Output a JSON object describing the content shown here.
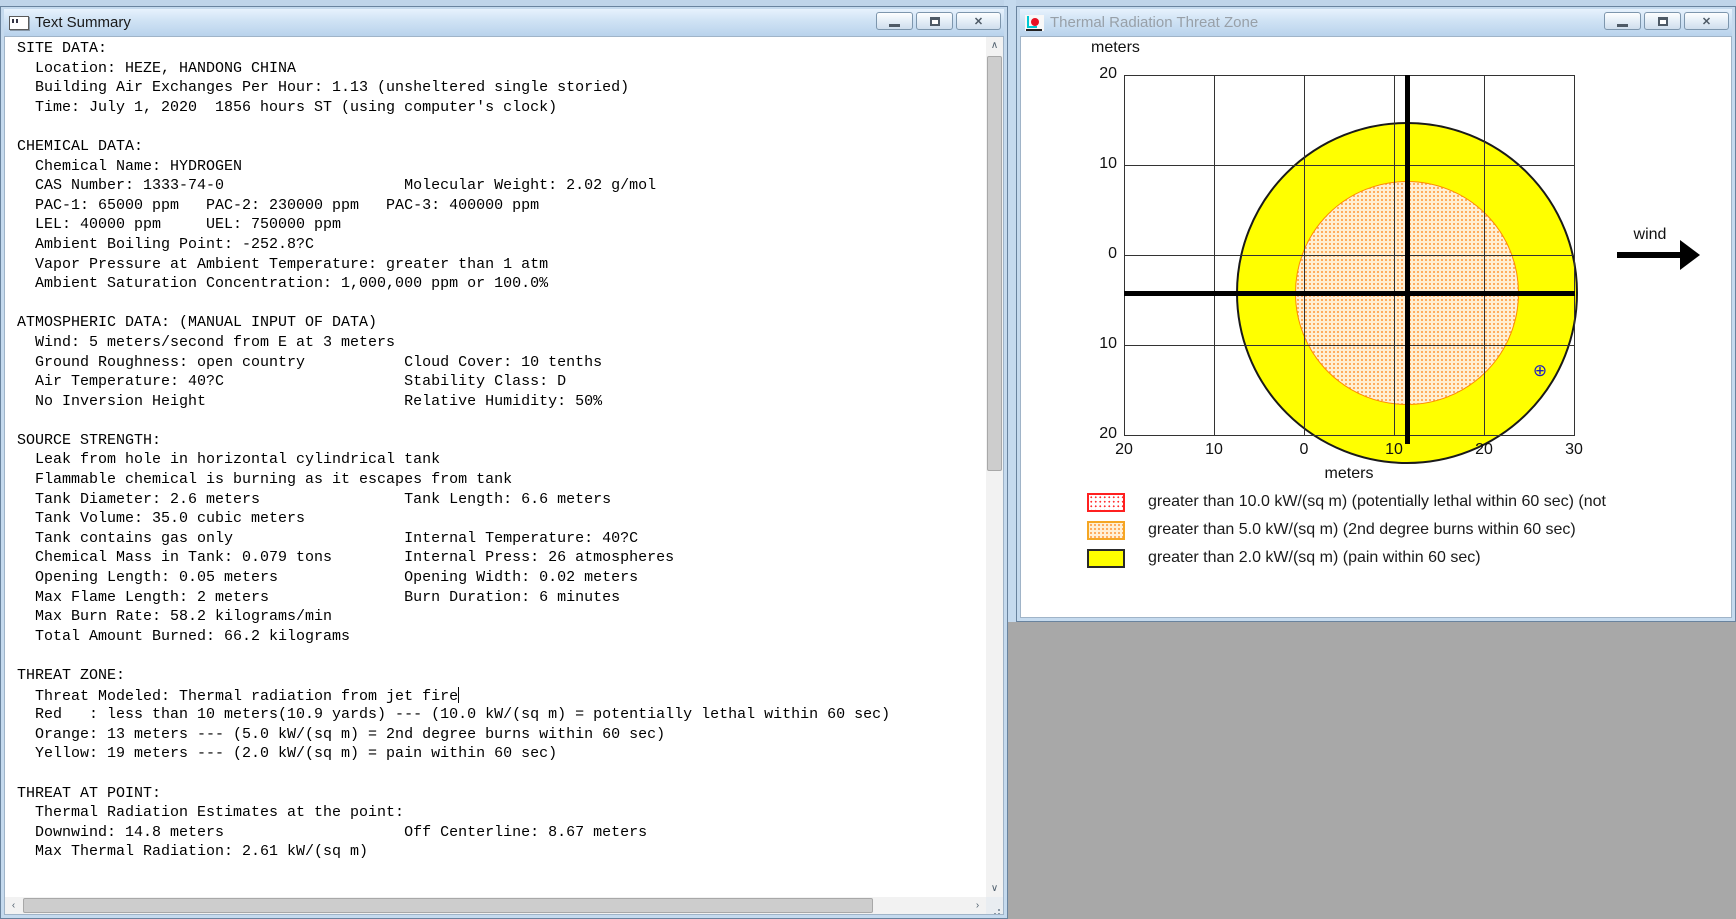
{
  "left_window": {
    "title": "Text Summary",
    "caret_after_line": 33,
    "summary_lines": [
      "SITE DATA:",
      "  Location: HEZE, HANDONG CHINA",
      "  Building Air Exchanges Per Hour: 1.13 (unsheltered single storied)",
      "  Time: July 1, 2020  1856 hours ST (using computer's clock)",
      "",
      "CHEMICAL DATA:",
      "  Chemical Name: HYDROGEN",
      "  CAS Number: 1333-74-0                    Molecular Weight: 2.02 g/mol",
      "  PAC-1: 65000 ppm   PAC-2: 230000 ppm   PAC-3: 400000 ppm",
      "  LEL: 40000 ppm     UEL: 750000 ppm",
      "  Ambient Boiling Point: -252.8?C",
      "  Vapor Pressure at Ambient Temperature: greater than 1 atm",
      "  Ambient Saturation Concentration: 1,000,000 ppm or 100.0%",
      "",
      "ATMOSPHERIC DATA: (MANUAL INPUT OF DATA)",
      "  Wind: 5 meters/second from E at 3 meters",
      "  Ground Roughness: open country           Cloud Cover: 10 tenths",
      "  Air Temperature: 40?C                    Stability Class: D",
      "  No Inversion Height                      Relative Humidity: 50%",
      "",
      "SOURCE STRENGTH:",
      "  Leak from hole in horizontal cylindrical tank",
      "  Flammable chemical is burning as it escapes from tank",
      "  Tank Diameter: 2.6 meters                Tank Length: 6.6 meters",
      "  Tank Volume: 35.0 cubic meters",
      "  Tank contains gas only                   Internal Temperature: 40?C",
      "  Chemical Mass in Tank: 0.079 tons        Internal Press: 26 atmospheres",
      "  Opening Length: 0.05 meters              Opening Width: 0.02 meters",
      "  Max Flame Length: 2 meters               Burn Duration: 6 minutes",
      "  Max Burn Rate: 58.2 kilograms/min",
      "  Total Amount Burned: 66.2 kilograms",
      "",
      "THREAT ZONE:",
      "  Threat Modeled: Thermal radiation from jet fire",
      "  Red   : less than 10 meters(10.9 yards) --- (10.0 kW/(sq m) = potentially lethal within 60 sec)",
      "  Orange: 13 meters --- (5.0 kW/(sq m) = 2nd degree burns within 60 sec)",
      "  Yellow: 19 meters --- (2.0 kW/(sq m) = pain within 60 sec)",
      "",
      "THREAT AT POINT:",
      "  Thermal Radiation Estimates at the point:",
      "  Downwind: 14.8 meters                    Off Centerline: 8.67 meters",
      "  Max Thermal Radiation: 2.61 kW/(sq m)"
    ],
    "scrollbar": {
      "up": "∧",
      "down": "∨",
      "left": "‹",
      "right": "›"
    }
  },
  "right_window": {
    "title": "Thermal Radiation Threat Zone"
  },
  "window_controls": {
    "minimize_glyph": "",
    "maximize_glyph": "",
    "close_glyph": "✕"
  },
  "chart_data": {
    "type": "area",
    "title": "Thermal Radiation Threat Zone",
    "xlabel": "meters",
    "ylabel": "meters",
    "xlim": [
      -20,
      30
    ],
    "ylim": [
      -20,
      20
    ],
    "grid": true,
    "x_ticks": [
      "20",
      "10",
      "0",
      "10",
      "20",
      "30"
    ],
    "y_ticks": [
      "20",
      "10",
      "0",
      "10",
      "20"
    ],
    "wind_label": "wind",
    "zones": [
      {
        "name": "red",
        "threshold_kw_sqm": 10.0,
        "effect": "potentially lethal within 60 sec",
        "radius_m": 10,
        "drawn": false,
        "color": "#ff2020",
        "pattern": "red dots"
      },
      {
        "name": "orange",
        "threshold_kw_sqm": 5.0,
        "effect": "2nd degree burns within 60 sec",
        "radius_m": 13,
        "drawn": true,
        "color": "#ff9c40",
        "pattern": "orange stipple"
      },
      {
        "name": "yellow",
        "threshold_kw_sqm": 2.0,
        "effect": "pain within 60 sec",
        "radius_m": 19,
        "drawn": true,
        "color": "#ffff00",
        "pattern": "solid"
      }
    ],
    "legend": [
      "greater than 10.0 kW/(sq m) (potentially lethal within 60 sec) (not",
      "greater than 5.0 kW/(sq m) (2nd degree burns within 60 sec)",
      "greater than 2.0 kW/(sq m) (pain within 60 sec)"
    ],
    "point_marker": {
      "x_m": 14.8,
      "y_m": -8.67,
      "symbol": "⊕",
      "color": "#1f1fbf"
    }
  }
}
